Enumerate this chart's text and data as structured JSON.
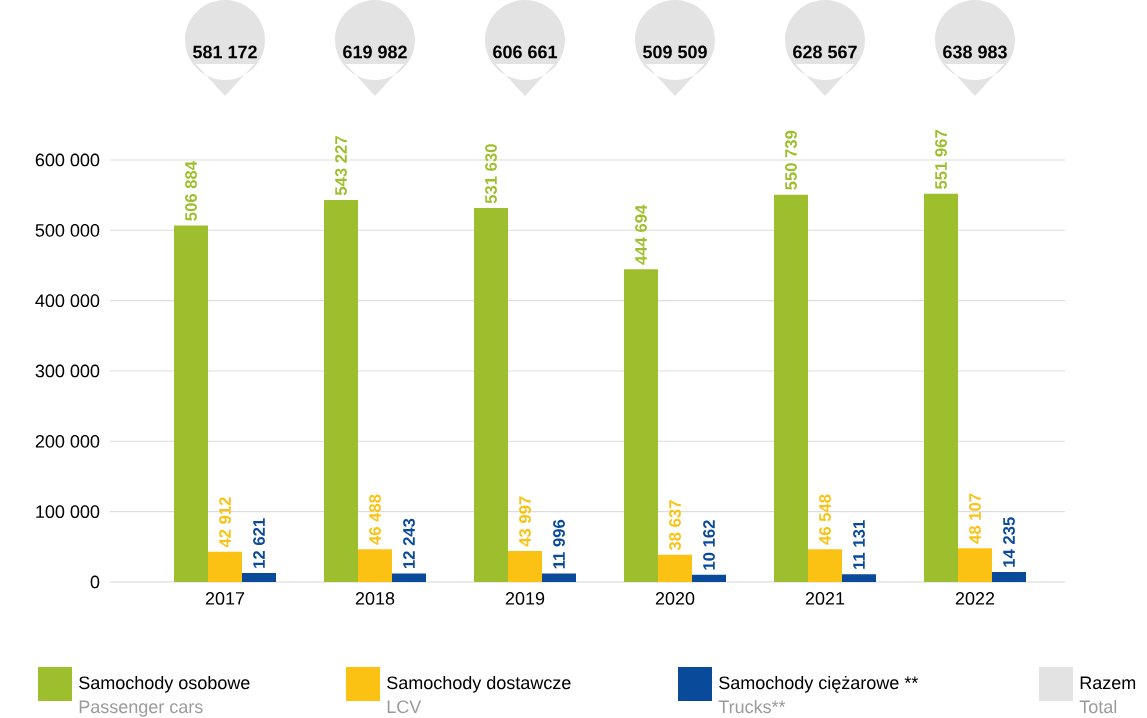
{
  "chart_data": {
    "type": "bar",
    "categories": [
      "2017",
      "2018",
      "2019",
      "2020",
      "2021",
      "2022"
    ],
    "series": [
      {
        "name": "Samochody osobowe",
        "color": "#9dbf2e",
        "values": [
          506884,
          543227,
          531630,
          444694,
          550739,
          551967
        ],
        "value_labels": [
          "506 884",
          "543 227",
          "531 630",
          "444 694",
          "550 739",
          "551 967"
        ]
      },
      {
        "name": "Samochody dostawcze",
        "color": "#fcc213",
        "values": [
          42912,
          46488,
          43997,
          38637,
          46548,
          48107
        ],
        "value_labels": [
          "42 912",
          "46 488",
          "43 997",
          "38 637",
          "46 548",
          "48 107"
        ]
      },
      {
        "name": "Samochody ciężarowe **",
        "color": "#0a4a9a",
        "values": [
          12621,
          12243,
          11996,
          10162,
          11131,
          14235
        ],
        "value_labels": [
          "12 621",
          "12 243",
          "11 996",
          "10 162",
          "11 131",
          "14 235"
        ]
      }
    ],
    "ylim": [
      0,
      600000
    ],
    "yticks": [
      0,
      {
        "value": 100000,
        "label": "100 000"
      },
      {
        "value": 200000,
        "label": "200 000"
      },
      {
        "value": 300000,
        "label": "300 000"
      },
      {
        "value": 400000,
        "label": "400 000"
      },
      {
        "value": 500000,
        "label": "500 000"
      },
      {
        "value": 600000,
        "label": "600 000"
      }
    ],
    "grid": "y",
    "legend": "bottom",
    "annotations": [
      "Passenger cars",
      "LCV",
      "Trucks**",
      "Razem",
      "Total",
      "581 172",
      "619 982",
      "606 661",
      "509 509",
      "628 567",
      "638 983"
    ]
  }
}
